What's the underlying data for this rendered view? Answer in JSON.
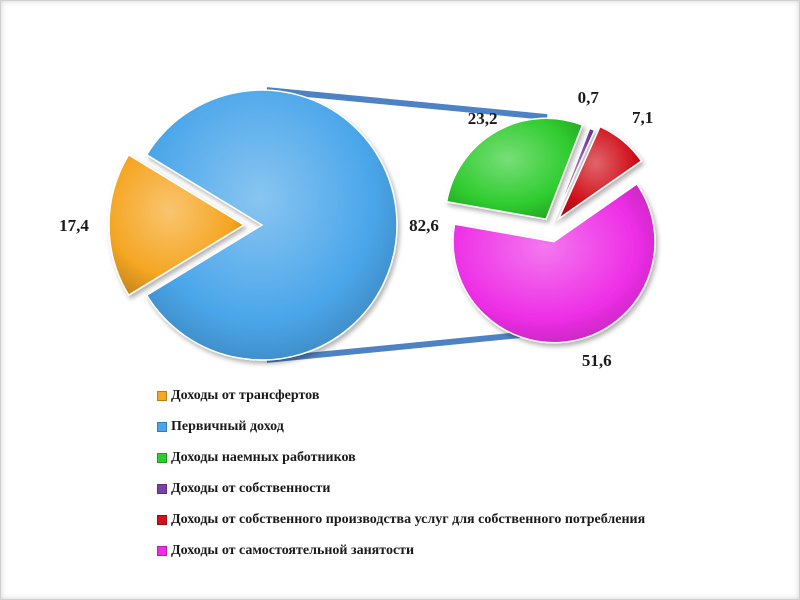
{
  "chart_data": {
    "type": "pie",
    "title": "",
    "pies": [
      {
        "slices": [
          {
            "label": "Доходы от трансфертов",
            "value": 17.4,
            "value_label": "17,4",
            "color": "#f5a623"
          },
          {
            "label": "Первичный доход",
            "value": 82.6,
            "value_label": "82,6",
            "color": "#4aa6ea"
          }
        ]
      },
      {
        "breakdown_of": "Первичный доход",
        "slices": [
          {
            "label": "Доходы наемных работников",
            "value": 23.2,
            "value_label": "23,2",
            "color": "#2fcc2f"
          },
          {
            "label": "Доходы от собственности",
            "value": 0.7,
            "value_label": "0,7",
            "color": "#7a3fa8"
          },
          {
            "label": "Доходы от собственного производства услуг для собственного потребления",
            "value": 7.1,
            "value_label": "7,1",
            "color": "#d0101a"
          },
          {
            "label": "Доходы от самостоятельной занятости",
            "value": 51.6,
            "value_label": "51,6",
            "color": "#ee2ee6"
          }
        ]
      }
    ],
    "legend": [
      {
        "label": "Доходы от трансфертов",
        "color": "#f5a623"
      },
      {
        "label": "Первичный доход",
        "color": "#4aa6ea"
      },
      {
        "label": "Доходы наемных работников",
        "color": "#2fcc2f"
      },
      {
        "label": "Доходы от собственности",
        "color": "#7a3fa8"
      },
      {
        "label": "Доходы от собственного производства услуг для собственного потребления",
        "color": "#d0101a"
      },
      {
        "label": "Доходы от самостоятельной занятости",
        "color": "#ee2ee6"
      }
    ],
    "legend_position": "bottom"
  }
}
